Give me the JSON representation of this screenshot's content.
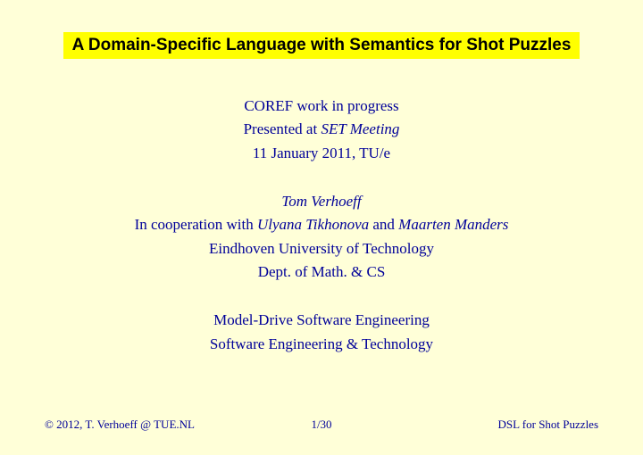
{
  "title": "A Domain-Specific Language with Semantics for Shot Puzzles",
  "meta": {
    "line1": "COREF work in progress",
    "line2_a": "Presented at ",
    "line2_b": "SET Meeting",
    "line3": "11 January 2011, TU/e"
  },
  "authors": {
    "name": "Tom Verhoeff",
    "coop_a": "In cooperation with ",
    "coop_b": "Ulyana Tikhonova",
    "coop_c": " and ",
    "coop_d": "Maarten Manders",
    "affil1": "Eindhoven University of Technology",
    "affil2": "Dept. of Math. & CS"
  },
  "groups": {
    "g1": "Model-Drive Software Engineering",
    "g2": "Software Engineering & Technology"
  },
  "footer": {
    "left": "© 2012, T. Verhoeff @ TUE.NL",
    "center": "1/30",
    "right": "DSL for Shot Puzzles"
  },
  "colors": {
    "background": "#ffffd8",
    "text": "#000099",
    "title_bg": "#ffff00",
    "title_text": "#000000"
  }
}
